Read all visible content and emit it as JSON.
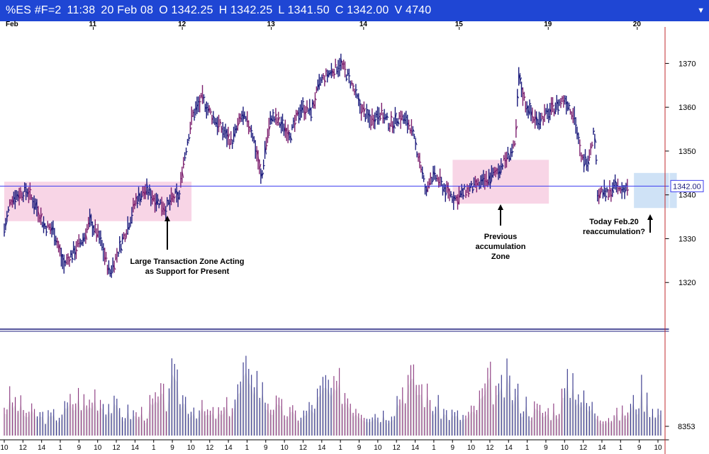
{
  "title_bar": {
    "symbol": "%ES #F=2",
    "time": "11:38",
    "date": "20 Feb 08",
    "open": "O 1342.25",
    "high": "H 1342.25",
    "low": "L 1341.50",
    "close": "C 1342.00",
    "volume": "V 4740",
    "menu_icon": "triangle-down-icon"
  },
  "chart_data": [
    {
      "type": "line",
      "subtype": "price-bars",
      "symbol": "%ES #F=2",
      "x_axis": {
        "labels": [
          "Feb",
          "11",
          "12",
          "13",
          "14",
          "15",
          "19",
          "20"
        ]
      },
      "y_axis": {
        "side": "right",
        "ticks": [
          1320,
          1330,
          1340,
          1350,
          1360,
          1370
        ],
        "range": [
          1310,
          1378
        ]
      },
      "series": [
        {
          "x": [
            0,
            0.01,
            0.02,
            0.035,
            0.05,
            0.06,
            0.075,
            0.09,
            0.105,
            0.12,
            0.13,
            0.145,
            0.16,
            0.175,
            0.19,
            0.2,
            0.215,
            0.23,
            0.245,
            0.26,
            0.265,
            0.27,
            0.285,
            0.3,
            0.315,
            0.33,
            0.345,
            0.36,
            0.375,
            0.385,
            0.39,
            0.395,
            0.405,
            0.42,
            0.435,
            0.45,
            0.465,
            0.48,
            0.495,
            0.51,
            0.525,
            0.54,
            0.555,
            0.57,
            0.585,
            0.6,
            0.615,
            0.63,
            0.64,
            0.645,
            0.655,
            0.67,
            0.685,
            0.7,
            0.715,
            0.73,
            0.745,
            0.76,
            0.775,
            0.78,
            0.79,
            0.805,
            0.82,
            0.835,
            0.85,
            0.865,
            0.875,
            0.885,
            0.895,
            0.9,
            0.905,
            0.915,
            0.925,
            0.935,
            0.945
          ],
          "values": [
            1332,
            1339,
            1340,
            1341,
            1337,
            1333,
            1332,
            1324,
            1327,
            1330,
            1334,
            1330,
            1322,
            1328,
            1334,
            1339,
            1341,
            1339,
            1337,
            1340,
            1339,
            1346,
            1358,
            1362,
            1358,
            1355,
            1352,
            1358,
            1355,
            1348,
            1343,
            1350,
            1358,
            1356,
            1354,
            1360,
            1359,
            1366,
            1368,
            1370,
            1366,
            1360,
            1357,
            1359,
            1356,
            1358,
            1356,
            1348,
            1340,
            1344,
            1344,
            1341,
            1339,
            1341,
            1342,
            1343,
            1345,
            1348,
            1351,
            1367,
            1361,
            1357,
            1358,
            1360,
            1362,
            1358,
            1348,
            1348,
            1355,
            1340,
            1341,
            1340,
            1342,
            1341,
            1342
          ]
        }
      ],
      "reference_line": {
        "value": 1342.0,
        "label": "1342.00"
      },
      "annotations": [
        {
          "text": "Large Transaction Zone Acting\nas Support for Present",
          "zone_low": 1334,
          "zone_high": 1343
        },
        {
          "text": "Previous\naccumulation\nZone",
          "zone_low": 1338,
          "zone_high": 1348
        },
        {
          "text": "Today Feb.20\nreaccumulation?",
          "zone_low": 1337,
          "zone_high": 1345
        }
      ]
    },
    {
      "type": "bar",
      "subtype": "volume",
      "y_axis": {
        "side": "right",
        "ticks": [
          8353
        ]
      },
      "x_axis": {
        "labels": [
          "10",
          "12",
          "14",
          "1",
          "9",
          "10",
          "12",
          "14",
          "1",
          "9",
          "10",
          "12",
          "14",
          "1",
          "9",
          "10",
          "12",
          "14",
          "1",
          "9",
          "10",
          "12",
          "14",
          "1",
          "9",
          "10",
          "12",
          "14",
          "1",
          "9",
          "10",
          "12",
          "14",
          "1",
          "9",
          "10"
        ]
      },
      "session_values": [
        [
          5200,
          6000,
          4800,
          4000,
          3600,
          3300,
          3000,
          3400,
          4200,
          5600,
          6500,
          5000
        ],
        [
          4800,
          7100,
          6200,
          5200,
          4400,
          3900,
          3600,
          3500,
          4200,
          5400,
          6200,
          5500
        ],
        [
          9800,
          7800,
          6200,
          5100,
          4300,
          3800,
          3400,
          3700,
          4800,
          6400,
          10400,
          7200
        ],
        [
          13600,
          8000,
          6200,
          5200,
          4300,
          3800,
          3400,
          3600,
          4800,
          6600,
          8600,
          6800
        ],
        [
          6800,
          8400,
          6300,
          5100,
          4300,
          3900,
          3500,
          3700,
          5000,
          7800,
          9600,
          8000
        ],
        [
          9400,
          7200,
          5600,
          4500,
          3800,
          3400,
          3000,
          3300,
          4600,
          7200,
          8800,
          6800
        ],
        [
          6200,
          8900,
          7200,
          5800,
          4900,
          4300,
          3900,
          4100,
          5300,
          7400,
          9800,
          7600
        ],
        [
          6000,
          5000,
          4200,
          3600,
          3100,
          3300,
          4000,
          5200,
          7400,
          5200,
          4600,
          3300
        ]
      ]
    }
  ],
  "colors": {
    "title_bar": "#1f46d4",
    "bars_up": "#1b1b7c",
    "bars_down": "#7c1f6e",
    "zone_pink": "#f8d5e6",
    "zone_blue": "#cfe2f6",
    "reference_line": "#3d3df0",
    "session_separator": "#c0292e"
  }
}
